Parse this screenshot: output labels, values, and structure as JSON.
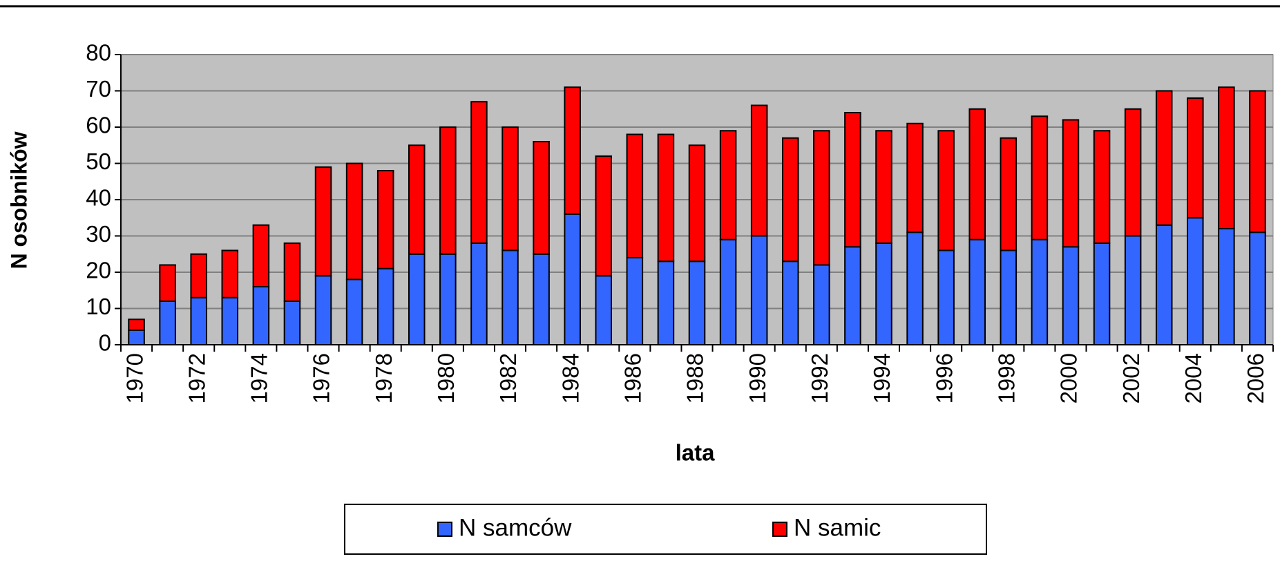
{
  "chart_data": {
    "type": "stacked_bar",
    "ylabel": "N osobników",
    "xlabel": "lata",
    "categories": [
      "1970",
      null,
      "1972",
      null,
      "1974",
      null,
      "1976",
      null,
      "1978",
      null,
      "1980",
      null,
      "1982",
      null,
      "1984",
      null,
      "1986",
      null,
      "1988",
      null,
      "1990",
      null,
      "1992",
      null,
      "1994",
      null,
      "1996",
      null,
      "1998",
      null,
      "2000",
      null,
      "2002",
      null,
      "2004",
      null,
      "2006"
    ],
    "series": [
      {
        "name": "N samców",
        "color": "#3366ff",
        "values": [
          4,
          12,
          13,
          13,
          16,
          12,
          19,
          18,
          21,
          25,
          25,
          28,
          26,
          25,
          36,
          19,
          24,
          23,
          23,
          29,
          30,
          23,
          22,
          27,
          28,
          31,
          26,
          29,
          26,
          29,
          27,
          28,
          30,
          33,
          35,
          32,
          31
        ]
      },
      {
        "name": "N samic",
        "color": "#ff0000",
        "values": [
          3,
          10,
          12,
          13,
          17,
          16,
          30,
          32,
          27,
          30,
          35,
          39,
          34,
          31,
          35,
          33,
          34,
          35,
          32,
          30,
          36,
          34,
          37,
          37,
          31,
          30,
          33,
          36,
          31,
          34,
          35,
          31,
          35,
          37,
          33,
          39,
          39
        ]
      }
    ],
    "ylim": [
      0,
      80
    ],
    "yticks": [
      0,
      10,
      20,
      30,
      40,
      50,
      60,
      70,
      80
    ],
    "grid": true,
    "plot_background": "#c0c0c0",
    "legend": "bottom"
  }
}
